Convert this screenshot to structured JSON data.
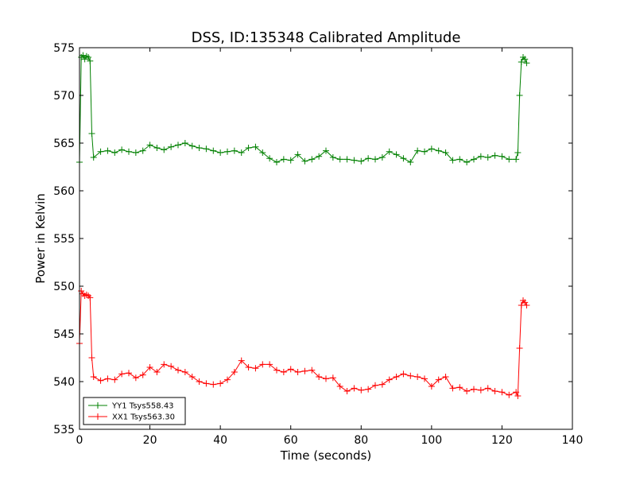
{
  "chart_data": {
    "type": "line",
    "title": "DSS, ID:135348 Calibrated Amplitude",
    "xlabel": "Time (seconds)",
    "ylabel": "Power in Kelvin",
    "xlim": [
      0,
      140
    ],
    "ylim": [
      535,
      575
    ],
    "xticks": [
      0,
      20,
      40,
      60,
      80,
      100,
      120,
      140
    ],
    "yticks": [
      535,
      540,
      545,
      550,
      555,
      560,
      565,
      570,
      575
    ],
    "grid": false,
    "legend_position": "lower-left",
    "marker": "+",
    "series": [
      {
        "name": "YY1 Tsys558.43",
        "color": "#008000",
        "x": [
          0.0,
          0.5,
          1.0,
          1.5,
          2.0,
          2.5,
          3.0,
          3.5,
          4.0,
          6.0,
          8.0,
          10.0,
          12.0,
          14.0,
          16.0,
          18.0,
          20.0,
          22.0,
          24.0,
          26.0,
          28.0,
          30.0,
          32.0,
          34.0,
          36.0,
          38.0,
          40.0,
          42.0,
          44.0,
          46.0,
          48.0,
          50.0,
          52.0,
          54.0,
          56.0,
          58.0,
          60.0,
          62.0,
          64.0,
          66.0,
          68.0,
          70.0,
          72.0,
          74.0,
          76.0,
          78.0,
          80.0,
          82.0,
          84.0,
          86.0,
          88.0,
          90.0,
          92.0,
          94.0,
          96.0,
          98.0,
          100.0,
          102.0,
          104.0,
          106.0,
          108.0,
          110.0,
          112.0,
          114.0,
          116.0,
          118.0,
          120.0,
          122.0,
          124.0,
          124.5,
          125.0,
          125.5,
          126.0,
          126.5,
          127.0
        ],
        "y": [
          563.0,
          574.0,
          574.2,
          573.8,
          574.1,
          574.0,
          573.6,
          566.0,
          563.5,
          564.1,
          564.2,
          564.0,
          564.3,
          564.1,
          564.0,
          564.2,
          564.8,
          564.5,
          564.3,
          564.6,
          564.8,
          565.0,
          564.7,
          564.5,
          564.4,
          564.2,
          564.0,
          564.1,
          564.2,
          564.0,
          564.5,
          564.6,
          564.0,
          563.4,
          563.0,
          563.3,
          563.2,
          563.8,
          563.1,
          563.3,
          563.6,
          564.2,
          563.5,
          563.3,
          563.3,
          563.2,
          563.1,
          563.4,
          563.3,
          563.5,
          564.1,
          563.8,
          563.4,
          563.0,
          564.2,
          564.1,
          564.4,
          564.2,
          564.0,
          563.2,
          563.3,
          563.0,
          563.3,
          563.6,
          563.5,
          563.7,
          563.6,
          563.3,
          563.3,
          564.0,
          570.0,
          573.5,
          574.0,
          573.8,
          573.4
        ]
      },
      {
        "name": "XX1 Tsys563.30",
        "color": "#ff0000",
        "x": [
          0.0,
          0.5,
          1.0,
          1.5,
          2.0,
          2.5,
          3.0,
          3.5,
          4.0,
          6.0,
          8.0,
          10.0,
          12.0,
          14.0,
          16.0,
          18.0,
          20.0,
          22.0,
          24.0,
          26.0,
          28.0,
          30.0,
          32.0,
          34.0,
          36.0,
          38.0,
          40.0,
          42.0,
          44.0,
          46.0,
          48.0,
          50.0,
          52.0,
          54.0,
          56.0,
          58.0,
          60.0,
          62.0,
          64.0,
          66.0,
          68.0,
          70.0,
          72.0,
          74.0,
          76.0,
          78.0,
          80.0,
          82.0,
          84.0,
          86.0,
          88.0,
          90.0,
          92.0,
          94.0,
          96.0,
          98.0,
          100.0,
          102.0,
          104.0,
          106.0,
          108.0,
          110.0,
          112.0,
          114.0,
          116.0,
          118.0,
          120.0,
          122.0,
          124.0,
          124.5,
          125.0,
          125.5,
          126.0,
          126.5,
          127.0
        ],
        "y": [
          544.0,
          549.5,
          549.2,
          549.0,
          549.1,
          549.0,
          548.8,
          542.5,
          540.5,
          540.1,
          540.3,
          540.2,
          540.8,
          540.9,
          540.4,
          540.7,
          541.5,
          541.0,
          541.8,
          541.6,
          541.2,
          541.0,
          540.5,
          540.0,
          539.8,
          539.7,
          539.8,
          540.2,
          541.0,
          542.2,
          541.5,
          541.4,
          541.8,
          541.8,
          541.2,
          541.0,
          541.3,
          541.0,
          541.1,
          541.2,
          540.5,
          540.3,
          540.4,
          539.5,
          539.0,
          539.3,
          539.1,
          539.2,
          539.6,
          539.7,
          540.2,
          540.5,
          540.8,
          540.6,
          540.5,
          540.3,
          539.5,
          540.2,
          540.5,
          539.3,
          539.4,
          539.0,
          539.2,
          539.1,
          539.3,
          539.0,
          538.9,
          538.6,
          538.9,
          538.5,
          543.5,
          548.0,
          548.5,
          548.3,
          548.0
        ]
      }
    ]
  }
}
